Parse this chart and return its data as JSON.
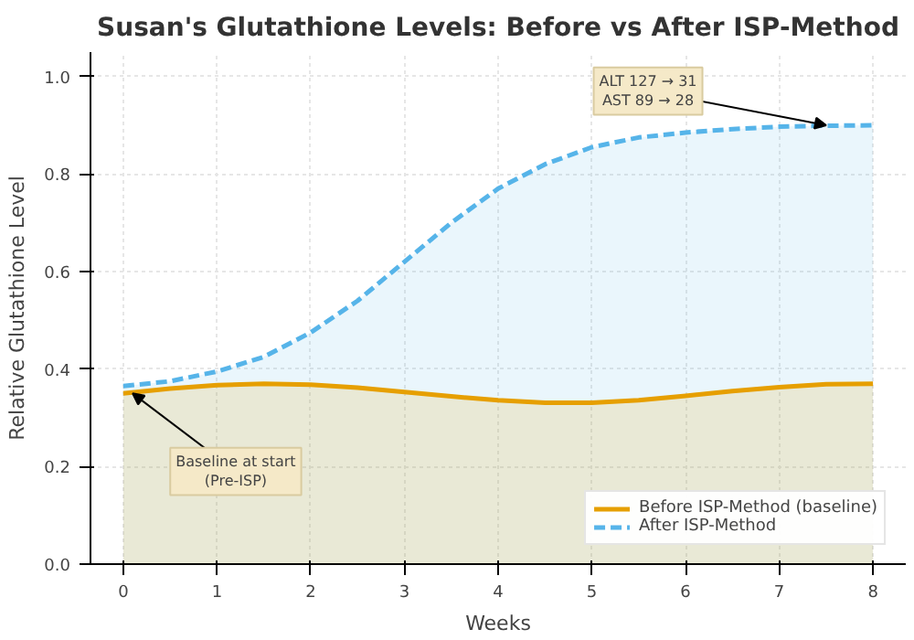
{
  "chart_data": {
    "type": "area",
    "title": "Susan's Glutathione Levels: Before vs After ISP-Method",
    "xlabel": "Weeks",
    "ylabel": "Relative Glutathione Level",
    "x": [
      0,
      0.5,
      1,
      1.5,
      2,
      2.5,
      3,
      3.5,
      4,
      4.5,
      5,
      5.5,
      6,
      6.5,
      7,
      7.5,
      8
    ],
    "series": [
      {
        "name": "Before ISP-Method (baseline)",
        "color": "#e69f00",
        "line_style": "solid",
        "values": [
          0.35,
          0.36,
          0.367,
          0.37,
          0.368,
          0.362,
          0.353,
          0.344,
          0.336,
          0.331,
          0.331,
          0.336,
          0.345,
          0.355,
          0.363,
          0.369,
          0.37
        ]
      },
      {
        "name": "After ISP-Method",
        "color": "#56b4e9",
        "line_style": "dashed",
        "values": [
          0.365,
          0.375,
          0.395,
          0.425,
          0.475,
          0.54,
          0.62,
          0.7,
          0.77,
          0.82,
          0.855,
          0.875,
          0.885,
          0.892,
          0.897,
          0.899,
          0.9
        ]
      }
    ],
    "xlim": [
      -0.35,
      8.35
    ],
    "ylim": [
      0,
      1.05
    ],
    "xticks": [
      0,
      1,
      2,
      3,
      4,
      5,
      6,
      7,
      8
    ],
    "yticks": [
      {
        "value": 0,
        "label": "0.0"
      },
      0.2,
      0.4,
      0.6,
      0.8,
      {
        "value": 1,
        "label": "1.0"
      }
    ],
    "grid": true,
    "legend": "bottom right",
    "annotations": [
      {
        "text": "ALT 127 → 31\nAST 89 → 28",
        "x": 7.5,
        "y": 0.9
      },
      {
        "text": "Baseline at start\n(Pre-ISP)",
        "x": 0.1,
        "y": 0.35
      }
    ]
  }
}
